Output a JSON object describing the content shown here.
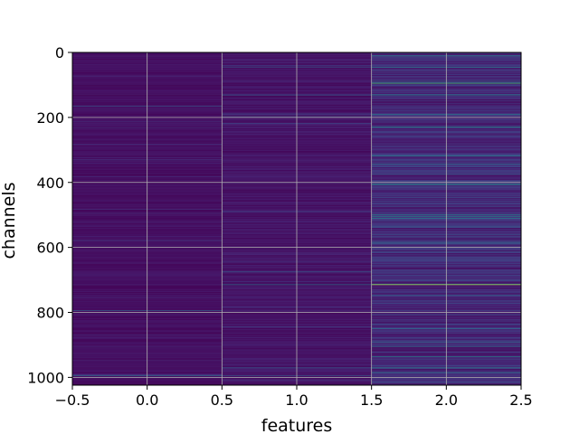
{
  "chart_data": {
    "type": "heatmap",
    "title": "",
    "xlabel": "features",
    "ylabel": "channels",
    "xlim": [
      -0.5,
      2.5
    ],
    "ylim": [
      1024,
      0
    ],
    "y_inverted": true,
    "grid": true,
    "colormap": "viridis",
    "x_ticks": [
      -0.5,
      0.0,
      0.5,
      1.0,
      1.5,
      2.0,
      2.5
    ],
    "x_tick_labels": [
      "−0.5",
      "0.0",
      "0.5",
      "1.0",
      "1.5",
      "2.0",
      "2.5"
    ],
    "y_ticks": [
      0,
      200,
      400,
      600,
      800,
      1000
    ],
    "y_tick_labels": [
      "0",
      "200",
      "400",
      "600",
      "800",
      "1000"
    ],
    "feature_columns": [
      0,
      1,
      2
    ],
    "n_channels": 1024,
    "highlighted_channels": [
      {
        "column": 0,
        "channel": 165,
        "value": 0.35
      },
      {
        "column": 0,
        "channel": 795,
        "value": 0.4
      },
      {
        "column": 0,
        "channel": 995,
        "value": 0.45
      },
      {
        "column": 1,
        "channel": 45,
        "value": 0.35
      },
      {
        "column": 1,
        "channel": 130,
        "value": 0.4
      },
      {
        "column": 1,
        "channel": 715,
        "value": 0.5
      },
      {
        "column": 1,
        "channel": 970,
        "value": 0.4
      },
      {
        "column": 1,
        "channel": 995,
        "value": 0.35
      },
      {
        "column": 2,
        "channel": 10,
        "value": 0.6
      },
      {
        "column": 2,
        "channel": 45,
        "value": 0.55
      },
      {
        "column": 2,
        "channel": 95,
        "value": 0.8
      },
      {
        "column": 2,
        "channel": 130,
        "value": 0.6
      },
      {
        "column": 2,
        "channel": 190,
        "value": 0.5
      },
      {
        "column": 2,
        "channel": 230,
        "value": 0.45
      },
      {
        "column": 2,
        "channel": 405,
        "value": 0.55
      },
      {
        "column": 2,
        "channel": 505,
        "value": 0.6
      },
      {
        "column": 2,
        "channel": 715,
        "value": 0.95
      },
      {
        "column": 2,
        "channel": 850,
        "value": 0.5
      },
      {
        "column": 2,
        "channel": 905,
        "value": 0.45
      },
      {
        "column": 2,
        "channel": 970,
        "value": 0.6
      },
      {
        "column": 2,
        "channel": 985,
        "value": 0.55
      }
    ],
    "baseline_level": [
      0.06,
      0.08,
      0.16
    ]
  }
}
